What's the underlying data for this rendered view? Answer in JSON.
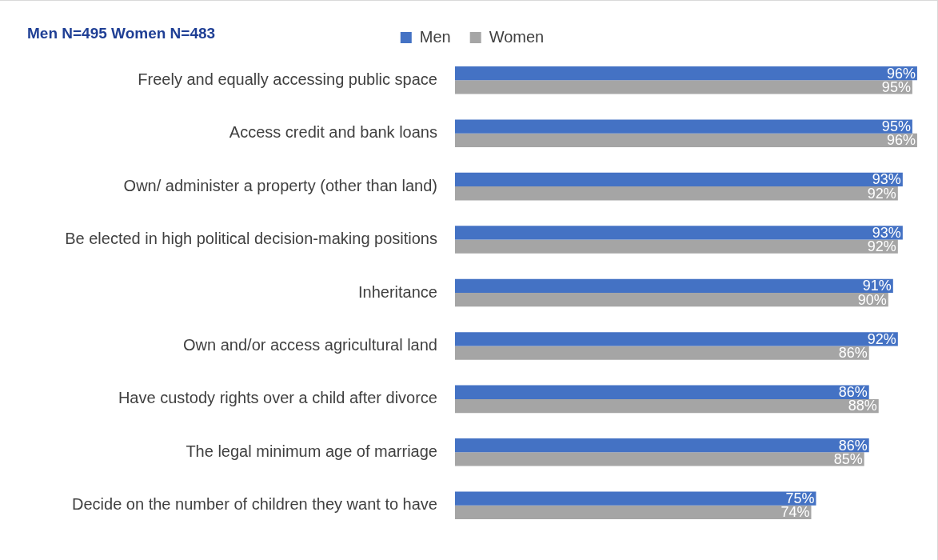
{
  "chart_data": {
    "type": "bar",
    "orientation": "horizontal",
    "title": "Men N=495 Women N=483",
    "categories": [
      "Freely and equally accessing public space",
      "Access credit and bank loans",
      "Own/ administer a property (other than land)",
      "Be elected in high political decision-making positions",
      "Inheritance",
      "Own and/or access agricultural land",
      "Have custody rights over a child after divorce",
      "The legal minimum age of marriage",
      "Decide on the number of children they want to have"
    ],
    "series": [
      {
        "name": "Men",
        "color": "#4472c4",
        "values": [
          96,
          95,
          93,
          93,
          91,
          92,
          86,
          86,
          75
        ],
        "value_labels": [
          "96%",
          "95%",
          "93%",
          "93%",
          "91%",
          "92%",
          "86%",
          "86%",
          "75%"
        ]
      },
      {
        "name": "Women",
        "color": "#a5a5a5",
        "values": [
          95,
          96,
          92,
          92,
          90,
          86,
          88,
          85,
          74
        ],
        "value_labels": [
          "95%",
          "96%",
          "92%",
          "92%",
          "90%",
          "86%",
          "88%",
          "85%",
          "74%"
        ]
      }
    ],
    "legend": "top",
    "grid": false,
    "tick_labels": "y"
  }
}
